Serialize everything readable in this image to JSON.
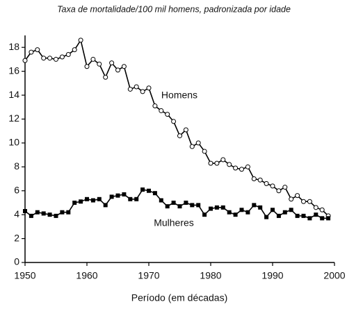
{
  "chart_data": {
    "type": "line",
    "title": "Taxa de mortalidade/100 mil homens, padronizada por idade",
    "x_label": "Período (em décadas)",
    "x": [
      1950,
      1951,
      1952,
      1953,
      1954,
      1955,
      1956,
      1957,
      1958,
      1959,
      1960,
      1961,
      1962,
      1963,
      1964,
      1965,
      1966,
      1967,
      1968,
      1969,
      1970,
      1971,
      1972,
      1973,
      1974,
      1975,
      1976,
      1977,
      1978,
      1979,
      1980,
      1981,
      1982,
      1983,
      1984,
      1985,
      1986,
      1987,
      1988,
      1989,
      1990,
      1991,
      1992,
      1993,
      1994,
      1995,
      1996,
      1997,
      1998,
      1999
    ],
    "series": [
      {
        "name": "Homens",
        "color": "#000000",
        "marker": "circle",
        "values": [
          16.9,
          17.6,
          17.8,
          17.1,
          17.1,
          17.0,
          17.2,
          17.4,
          17.8,
          18.6,
          16.4,
          17.0,
          16.6,
          15.5,
          16.7,
          16.1,
          16.4,
          14.5,
          14.7,
          14.3,
          14.6,
          13.1,
          12.7,
          12.4,
          11.8,
          10.6,
          11.1,
          9.7,
          10.0,
          9.3,
          8.3,
          8.3,
          8.6,
          8.2,
          7.9,
          7.8,
          8.0,
          7.0,
          6.9,
          6.6,
          6.4,
          6.0,
          6.3,
          5.3,
          5.6,
          5.1,
          5.1,
          4.6,
          4.4,
          3.9
        ]
      },
      {
        "name": "Mulheres",
        "color": "#000000",
        "marker": "square",
        "values": [
          4.3,
          3.9,
          4.2,
          4.1,
          4.0,
          3.9,
          4.2,
          4.2,
          5.0,
          5.1,
          5.3,
          5.2,
          5.3,
          4.8,
          5.5,
          5.6,
          5.7,
          5.3,
          5.3,
          6.1,
          6.0,
          5.8,
          5.2,
          4.7,
          5.0,
          4.7,
          5.0,
          4.8,
          4.8,
          4.0,
          4.5,
          4.6,
          4.6,
          4.2,
          4.0,
          4.4,
          4.2,
          4.8,
          4.6,
          3.8,
          4.4,
          3.9,
          4.2,
          4.4,
          3.9,
          3.9,
          3.7,
          4.0,
          3.7,
          3.7
        ]
      }
    ],
    "xlim": [
      1950,
      2000
    ],
    "xticks": [
      1950,
      1960,
      1970,
      1980,
      1990,
      2000
    ],
    "ylim": [
      0,
      19
    ],
    "yticks": [
      0,
      2,
      4,
      6,
      8,
      10,
      12,
      14,
      16,
      18
    ],
    "grid": false
  }
}
